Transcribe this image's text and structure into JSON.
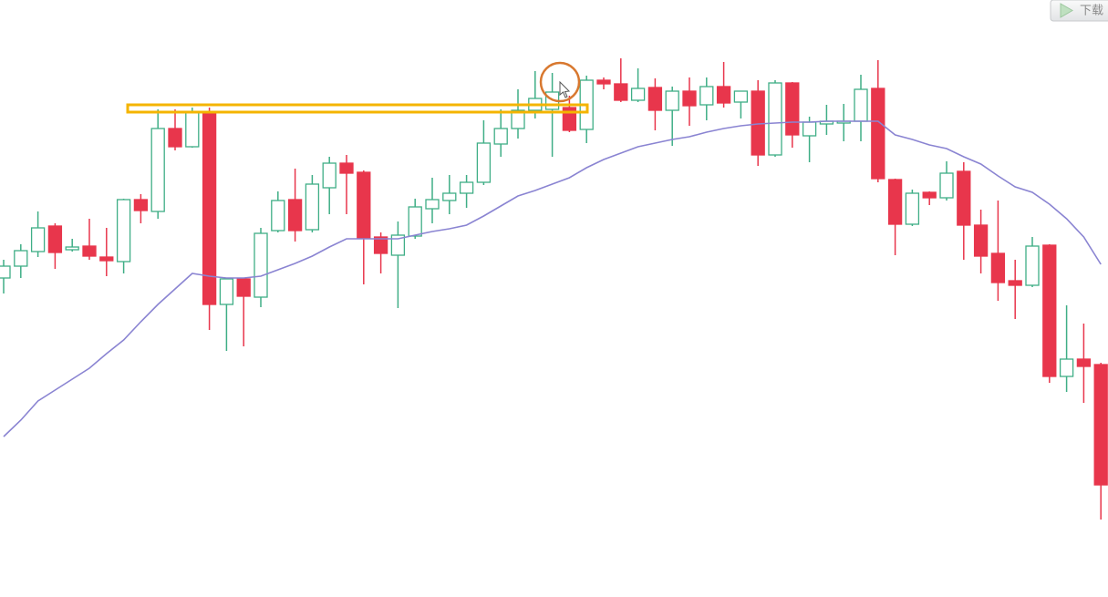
{
  "toolbar": {
    "download": "下载"
  },
  "chart_data": {
    "type": "candlestick",
    "ylim": [
      0,
      655
    ],
    "up_color": "#3fae86",
    "down_color": "#e8364c",
    "open": [
      350,
      363,
      379,
      407,
      381,
      385,
      373,
      368,
      436,
      423,
      514,
      494,
      532,
      321,
      349,
      329,
      402,
      436,
      403,
      449,
      476,
      466,
      395,
      375,
      396,
      426,
      435,
      443,
      455,
      497,
      514,
      534,
      535,
      537,
      513,
      567,
      563,
      545,
      559,
      534,
      555,
      540,
      560,
      543,
      555,
      485,
      564,
      506,
      519,
      520,
      522,
      558,
      458,
      409,
      444,
      438,
      467,
      408,
      377,
      347,
      342,
      386,
      242,
      261,
      255
    ],
    "high": [
      370,
      387,
      423,
      410,
      393,
      415,
      405,
      437,
      442,
      535,
      535,
      537,
      537,
      350,
      350,
      405,
      445,
      470,
      463,
      483,
      485,
      468,
      400,
      412,
      437,
      460,
      463,
      463,
      523,
      535,
      557,
      577,
      575,
      550,
      572,
      570,
      591,
      580,
      569,
      560,
      570,
      570,
      587,
      555,
      567,
      567,
      565,
      527,
      540,
      541,
      573,
      589,
      459,
      447,
      445,
      478,
      477,
      425,
      435,
      370,
      395,
      387,
      320,
      300,
      257
    ],
    "low": [
      333,
      350,
      373,
      360,
      379,
      370,
      352,
      355,
      410,
      415,
      490,
      493,
      293,
      270,
      275,
      318,
      400,
      390,
      400,
      420,
      420,
      343,
      355,
      317,
      393,
      410,
      420,
      427,
      452,
      483,
      503,
      525,
      483,
      510,
      498,
      557,
      543,
      543,
      512,
      495,
      517,
      523,
      537,
      525,
      473,
      483,
      493,
      477,
      507,
      500,
      500,
      455,
      375,
      407,
      430,
      435,
      370,
      355,
      325,
      305,
      340,
      235,
      225,
      213,
      85
    ],
    "close": [
      363,
      380,
      405,
      378,
      384,
      374,
      369,
      436,
      424,
      514,
      494,
      532,
      321,
      349,
      330,
      399,
      435,
      402,
      453,
      476,
      465,
      394,
      377,
      397,
      428,
      436,
      443,
      455,
      498,
      514,
      534,
      547,
      554,
      512,
      567,
      563,
      545,
      558,
      534,
      555,
      539,
      560,
      542,
      555,
      485,
      564,
      507,
      521,
      522,
      522,
      557,
      459,
      409,
      443,
      438,
      465,
      408,
      374,
      345,
      342,
      385,
      242,
      261,
      253,
      123
    ],
    "ma": {
      "color": "#8a84d2",
      "values": [
        176,
        194,
        215,
        227,
        239,
        251,
        267,
        282,
        302,
        321,
        338,
        355,
        352,
        350,
        350,
        352,
        359,
        366,
        374,
        384,
        393,
        393,
        393,
        393,
        397,
        401,
        404,
        408,
        418,
        429,
        440,
        446,
        453,
        460,
        471,
        480,
        487,
        494,
        498,
        502,
        505,
        510,
        514,
        517,
        519,
        520,
        521,
        521,
        522,
        522,
        522,
        522,
        507,
        502,
        496,
        492,
        483,
        475,
        462,
        450,
        444,
        431,
        415,
        395,
        365
      ]
    }
  }
}
